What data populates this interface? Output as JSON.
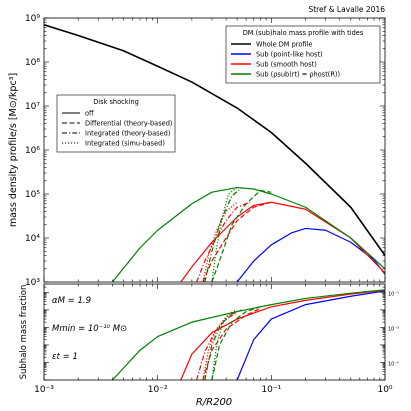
{
  "credit": "Stref & Lavalle 2016",
  "chart_data": [
    {
      "type": "line",
      "panel": "top",
      "xscale": "log",
      "yscale": "log",
      "xlim": [
        0.001,
        1
      ],
      "ylim": [
        1000,
        1000000000
      ],
      "ylabel": "mass density profile/s [M⊙/kpc³]",
      "x_ticks": [
        0.001,
        0.01,
        0.1,
        1
      ],
      "y_ticks": [
        1000,
        10000,
        100000,
        1000000,
        10000000,
        100000000,
        1000000000
      ],
      "y_tick_labels": [
        "10³",
        "10⁴",
        "10⁵",
        "10⁶",
        "10⁷",
        "10⁸",
        "10⁹"
      ],
      "legend_profiles": {
        "title": "DM (sub)halo mass profile with tides",
        "placement": "top-right",
        "entries": [
          {
            "label": "Whole DM profile",
            "color": "#000000"
          },
          {
            "label": "Sub (point-like host)",
            "color": "#0000ff"
          },
          {
            "label": "Sub (smooth host)",
            "color": "#ff0000"
          },
          {
            "label": "Sub (ρsub(rt) = ρhost(R))",
            "color": "#008000"
          }
        ]
      },
      "legend_shocking": {
        "title": "Disk shocking",
        "placement": "center-left",
        "entries": [
          {
            "label": "off",
            "dash": "solid"
          },
          {
            "label": "Differential (theory-based)",
            "dash": "dashed"
          },
          {
            "label": "Integrated (theory-based)",
            "dash": "dashdot"
          },
          {
            "label": "Integrated (simu-based)",
            "dash": "dotted"
          }
        ]
      },
      "series": [
        {
          "name": "Whole DM profile",
          "color": "#000000",
          "dash": "solid",
          "x": [
            0.001,
            0.002,
            0.005,
            0.01,
            0.02,
            0.05,
            0.1,
            0.2,
            0.5,
            1.0
          ],
          "y": [
            700000000,
            400000000,
            180000000,
            80000000,
            35000000,
            9000000,
            2500000,
            500000,
            50000,
            4000
          ]
        },
        {
          "name": "Sub (point-like host)",
          "color": "#0000ff",
          "dash": "solid",
          "x": [
            0.05,
            0.07,
            0.1,
            0.15,
            0.2,
            0.3,
            0.5,
            0.8,
            1.0
          ],
          "y": [
            1000,
            3000,
            7000,
            13000,
            16500,
            15000,
            8000,
            3200,
            1500
          ]
        },
        {
          "name": "Sub (smooth host)",
          "color": "#ff0000",
          "dash": "solid",
          "x": [
            0.016,
            0.02,
            0.03,
            0.05,
            0.07,
            0.1,
            0.2,
            0.5,
            1.0
          ],
          "y": [
            1000,
            2200,
            8000,
            30000,
            55000,
            65000,
            45000,
            10000,
            1600
          ]
        },
        {
          "name": "Sub (ρsub(rt) = ρhost(R))",
          "color": "#008000",
          "dash": "solid",
          "x": [
            0.004,
            0.007,
            0.01,
            0.02,
            0.03,
            0.05,
            0.07,
            0.1,
            0.2,
            0.5,
            1.0
          ],
          "y": [
            1000,
            6000,
            15000,
            60000,
            110000,
            140000,
            130000,
            100000,
            50000,
            10000,
            2000
          ]
        },
        {
          "name": "Sub (smooth host), Differential (theory-based)",
          "color": "#ff0000",
          "dash": "dashed",
          "x": [
            0.025,
            0.03,
            0.04,
            0.05,
            0.07,
            0.1
          ],
          "y": [
            1000,
            3000,
            10000,
            25000,
            50000,
            65000
          ]
        },
        {
          "name": "Sub (ρsub(rt) = ρhost(R)), Differential (theory-based)",
          "color": "#008000",
          "dash": "dashed",
          "x": [
            0.03,
            0.035,
            0.045,
            0.06,
            0.08,
            0.1
          ],
          "y": [
            1000,
            3000,
            20000,
            60000,
            120000,
            110000
          ]
        },
        {
          "name": "Sub (smooth host), Integrated (theory-based)",
          "color": "#ff0000",
          "dash": "dashdot",
          "x": [
            0.022,
            0.026,
            0.032,
            0.04,
            0.05,
            0.065
          ],
          "y": [
            1000,
            3000,
            9000,
            25000,
            50000,
            65000
          ]
        },
        {
          "name": "Sub (ρsub(rt) = ρhost(R)), Integrated (theory-based)",
          "color": "#008000",
          "dash": "dashdot",
          "x": [
            0.026,
            0.03,
            0.036,
            0.045,
            0.055
          ],
          "y": [
            1000,
            5000,
            25000,
            90000,
            140000
          ]
        },
        {
          "name": "Sub (smooth host), Integrated (simu-based)",
          "color": "#ff0000",
          "dash": "dotted",
          "x": [
            0.025,
            0.028,
            0.033,
            0.04,
            0.05
          ],
          "y": [
            1000,
            4000,
            15000,
            40000,
            65000
          ]
        },
        {
          "name": "Sub (ρsub(rt) = ρhost(R)), Integrated (simu-based)",
          "color": "#008000",
          "dash": "dotted",
          "x": [
            0.03,
            0.033,
            0.037,
            0.042,
            0.05
          ],
          "y": [
            1000,
            6000,
            30000,
            100000,
            140000
          ]
        }
      ]
    },
    {
      "type": "line",
      "panel": "bottom",
      "xscale": "log",
      "yscale": "log",
      "xlim": [
        0.001,
        1
      ],
      "ylim": [
        1e-06,
        0.3
      ],
      "xlabel": "R/R200",
      "ylabel": "Subhalo mass fraction",
      "x_ticks": [
        0.001,
        0.01,
        0.1,
        1
      ],
      "x_tick_labels": [
        "10⁻³",
        "10⁻²",
        "10⁻¹",
        "10⁰"
      ],
      "y_ticks": [
        1e-05,
        0.001,
        0.1
      ],
      "y_tick_labels": [
        "10⁻⁵",
        "10⁻³",
        "10⁻¹"
      ],
      "annotations": [
        "αM = 1.9",
        "Mmin = 10⁻¹⁰ M⊙",
        "εt = 1"
      ],
      "series": [
        {
          "name": "Sub (point-like host)",
          "color": "#0000ff",
          "dash": "solid",
          "x": [
            0.05,
            0.07,
            0.1,
            0.2,
            0.5,
            1.0
          ],
          "y": [
            1e-06,
            0.0002,
            0.003,
            0.02,
            0.06,
            0.12
          ]
        },
        {
          "name": "Sub (smooth host)",
          "color": "#ff0000",
          "dash": "solid",
          "x": [
            0.016,
            0.02,
            0.03,
            0.05,
            0.1,
            0.2,
            0.5,
            1.0
          ],
          "y": [
            1e-06,
            3e-05,
            0.0005,
            0.003,
            0.015,
            0.035,
            0.08,
            0.13
          ]
        },
        {
          "name": "Sub (ρsub(rt) = ρhost(R))",
          "color": "#008000",
          "dash": "solid",
          "x": [
            0.004,
            0.007,
            0.01,
            0.02,
            0.05,
            0.1,
            0.2,
            0.5,
            1.0
          ],
          "y": [
            1e-06,
            5e-05,
            0.0003,
            0.002,
            0.008,
            0.02,
            0.045,
            0.09,
            0.14
          ]
        },
        {
          "name": "Sub (smooth host), Differential (theory-based)",
          "color": "#ff0000",
          "dash": "dashed",
          "x": [
            0.025,
            0.03,
            0.04,
            0.06,
            0.08
          ],
          "y": [
            1e-06,
            5e-05,
            0.0008,
            0.005,
            0.012
          ]
        },
        {
          "name": "Sub (ρsub(rt) = ρhost(R)), Differential (theory-based)",
          "color": "#008000",
          "dash": "dashed",
          "x": [
            0.03,
            0.035,
            0.045,
            0.06,
            0.08
          ],
          "y": [
            1e-06,
            0.0001,
            0.002,
            0.008,
            0.015
          ]
        },
        {
          "name": "Sub (smooth host), Integrated (theory-based)",
          "color": "#ff0000",
          "dash": "dashdot",
          "x": [
            0.022,
            0.026,
            0.032,
            0.04,
            0.05
          ],
          "y": [
            1e-06,
            4e-05,
            0.0006,
            0.003,
            0.007
          ]
        },
        {
          "name": "Sub (ρsub(rt) = ρhost(R)), Integrated (theory-based)",
          "color": "#008000",
          "dash": "dashdot",
          "x": [
            0.026,
            0.03,
            0.036,
            0.045,
            0.055
          ],
          "y": [
            1e-06,
            0.0001,
            0.0015,
            0.006,
            0.01
          ]
        },
        {
          "name": "Sub (smooth host), Integrated (simu-based)",
          "color": "#ff0000",
          "dash": "dotted",
          "x": [
            0.025,
            0.028,
            0.033,
            0.04,
            0.05
          ],
          "y": [
            1e-06,
            5e-05,
            0.0008,
            0.004,
            0.008
          ]
        },
        {
          "name": "Sub (ρsub(rt) = ρhost(R)), Integrated (simu-based)",
          "color": "#008000",
          "dash": "dotted",
          "x": [
            0.03,
            0.033,
            0.037,
            0.042,
            0.05
          ],
          "y": [
            1e-06,
            0.0001,
            0.0015,
            0.006,
            0.01
          ]
        }
      ]
    }
  ]
}
